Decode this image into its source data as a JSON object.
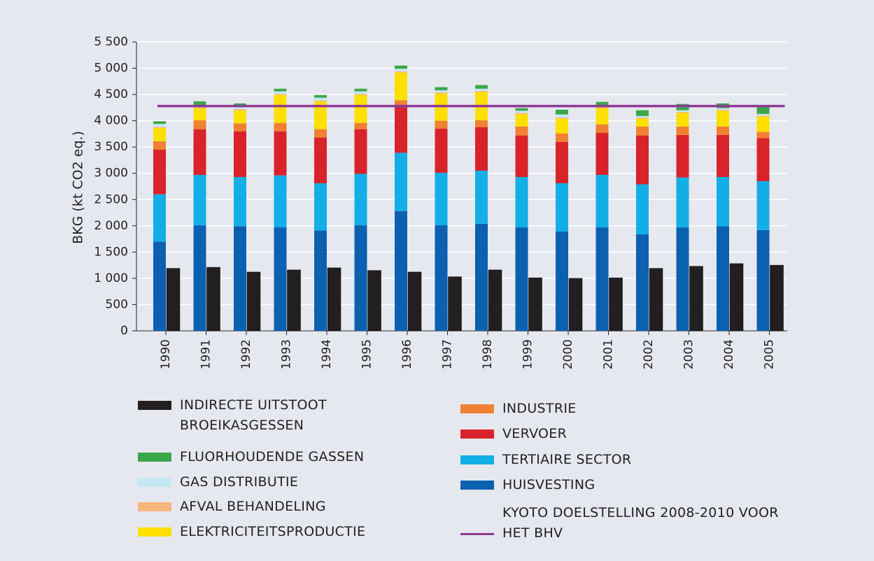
{
  "chart_data": {
    "type": "bar",
    "y_label": "BKG  (kt CO2 eq.)",
    "ylim": [
      0,
      5500
    ],
    "yticks": [
      0,
      500,
      {
        "value": 1000,
        "label": "1 000"
      },
      {
        "value": 1500,
        "label": "1 500"
      },
      {
        "value": 2000,
        "label": "2 000"
      },
      {
        "value": 2500,
        "label": "2 500"
      },
      {
        "value": 3000,
        "label": "3 000"
      },
      {
        "value": 3500,
        "label": "3 500"
      },
      {
        "value": 4000,
        "label": "4 000"
      },
      {
        "value": 4500,
        "label": "4 500"
      },
      {
        "value": 5000,
        "label": "5 000"
      },
      {
        "value": 5500,
        "label": "5 500"
      }
    ],
    "grid": true,
    "categories": [
      "1990",
      "1991",
      "1992",
      "1993",
      "1994",
      "1995",
      "1996",
      "1997",
      "1998",
      "1999",
      "2000",
      "2001",
      "2002",
      "2003",
      "2004",
      "2005"
    ],
    "series": [
      {
        "name": "HUISVESTING",
        "color": "#0b60b0",
        "values": [
          1700,
          2010,
          1990,
          1970,
          1910,
          2010,
          2280,
          2010,
          2040,
          1970,
          1890,
          1970,
          1840,
          1970,
          1990,
          1920
        ]
      },
      {
        "name": "TERTIAIRE SECTOR",
        "color": "#14aee6",
        "values": [
          900,
          960,
          940,
          990,
          900,
          980,
          1110,
          1000,
          1010,
          960,
          920,
          1000,
          950,
          950,
          940,
          930
        ]
      },
      {
        "name": "VERVOER",
        "color": "#d9232b",
        "values": [
          850,
          870,
          870,
          840,
          870,
          850,
          890,
          840,
          830,
          790,
          790,
          800,
          930,
          810,
          800,
          820
        ]
      },
      {
        "name": "INDUSTRIE",
        "color": "#f08132",
        "values": [
          160,
          170,
          150,
          160,
          160,
          120,
          110,
          150,
          130,
          170,
          160,
          160,
          170,
          160,
          160,
          120
        ]
      },
      {
        "name": "ELEKTRICITEITSPRODUCTIE",
        "color": "#ffe000",
        "values": [
          250,
          230,
          250,
          530,
          530,
          530,
          530,
          520,
          540,
          240,
          280,
          310,
          150,
          260,
          300,
          290
        ]
      },
      {
        "name": "AFVAL BEHANDELING",
        "color": "#f9b67c",
        "values": [
          20,
          20,
          20,
          20,
          20,
          20,
          20,
          20,
          20,
          20,
          20,
          20,
          20,
          20,
          20,
          20
        ]
      },
      {
        "name": "GAS DISTRIBUTIE",
        "color": "#c6e7f6",
        "values": [
          60,
          40,
          50,
          50,
          50,
          50,
          50,
          40,
          40,
          40,
          60,
          30,
          30,
          30,
          30,
          30
        ]
      },
      {
        "name": "FLUORHOUDENDE GASSEN",
        "color": "#3ba64b",
        "values": [
          50,
          70,
          60,
          50,
          50,
          50,
          60,
          60,
          70,
          50,
          90,
          70,
          110,
          120,
          90,
          150
        ]
      }
    ],
    "indirect": {
      "name": "INDIRECTE UITSTOOT BROEIKASGESSEN",
      "color": "#231f20",
      "values": [
        1190,
        1210,
        1120,
        1160,
        1200,
        1150,
        1120,
        1030,
        1160,
        1010,
        1000,
        1010,
        1190,
        1230,
        1280,
        1250
      ]
    },
    "target": {
      "name": "KYOTO DOELSTELLING 2008-2010 VOOR HET BHV",
      "color": "#8e3a96",
      "value": 4280
    }
  }
}
